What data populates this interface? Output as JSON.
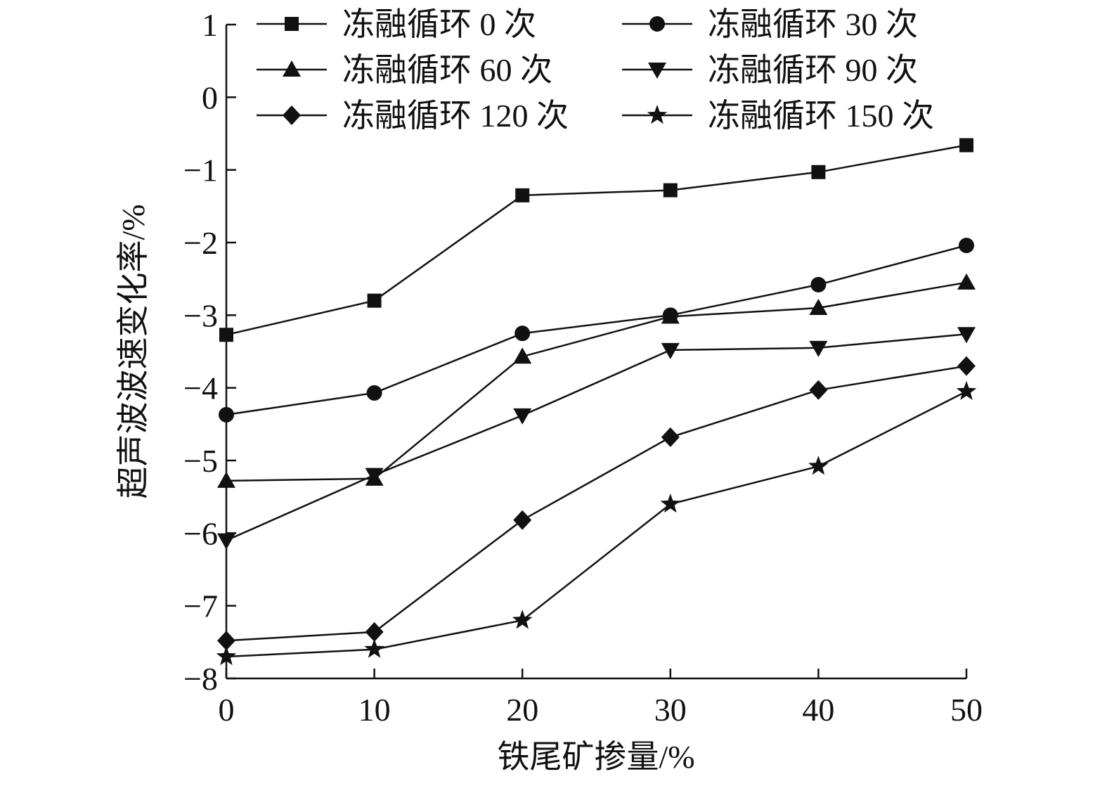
{
  "chart_data": {
    "type": "line",
    "xlabel": "铁尾矿掺量/%",
    "ylabel": "超声波波速变化率/%",
    "x": [
      0,
      10,
      20,
      30,
      40,
      50
    ],
    "xlim": [
      0,
      50
    ],
    "ylim": [
      -8,
      1
    ],
    "xticks": [
      "0",
      "10",
      "20",
      "30",
      "40",
      "50"
    ],
    "yticks": [
      "1",
      "0",
      "−1",
      "−2",
      "−3",
      "−4",
      "−5",
      "−6",
      "−7",
      "−8"
    ],
    "grid": false,
    "legend_position": "top",
    "series": [
      {
        "name": "冻融循环 0 次",
        "marker": "square",
        "values": [
          -3.27,
          -2.8,
          -1.35,
          -1.28,
          -1.03,
          -0.66
        ]
      },
      {
        "name": "冻融循环 30 次",
        "marker": "circle",
        "values": [
          -4.37,
          -4.07,
          -3.25,
          -3.0,
          -2.58,
          -2.04
        ]
      },
      {
        "name": "冻融循环 60 次",
        "marker": "triangle-up",
        "values": [
          -5.28,
          -5.25,
          -3.57,
          -3.02,
          -2.9,
          -2.55
        ]
      },
      {
        "name": "冻融循环 90 次",
        "marker": "triangle-down",
        "values": [
          -6.1,
          -5.2,
          -4.38,
          -3.48,
          -3.45,
          -3.26
        ]
      },
      {
        "name": "冻融循环 120 次",
        "marker": "diamond",
        "values": [
          -7.48,
          -7.36,
          -5.82,
          -4.68,
          -4.03,
          -3.7
        ]
      },
      {
        "name": "冻融循环 150 次",
        "marker": "star",
        "values": [
          -7.7,
          -7.6,
          -7.2,
          -5.6,
          -5.08,
          -4.05
        ]
      }
    ]
  }
}
